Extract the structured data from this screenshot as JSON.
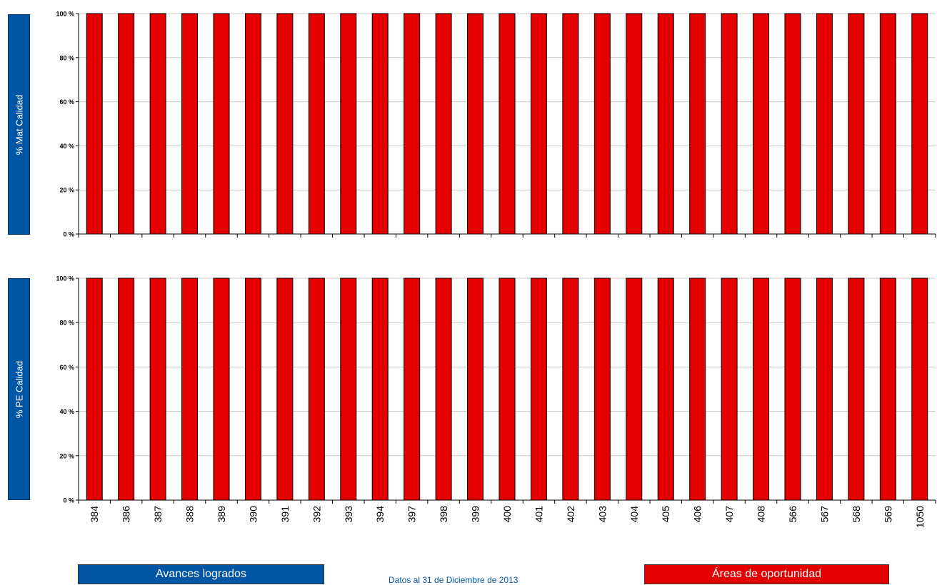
{
  "chart_data": [
    {
      "type": "bar",
      "ylabel": "% Mat Calidad",
      "ylim": [
        0,
        100
      ],
      "yticks": [
        "0 %",
        "20 %",
        "40 %",
        "60 %",
        "80 %",
        "100 %"
      ],
      "grid": true,
      "categories": [
        "384",
        "386",
        "387",
        "388",
        "389",
        "390",
        "391",
        "392",
        "393",
        "394",
        "397",
        "398",
        "399",
        "400",
        "401",
        "402",
        "403",
        "404",
        "405",
        "406",
        "407",
        "408",
        "566",
        "567",
        "568",
        "569",
        "1050"
      ],
      "values": [
        100,
        100,
        100,
        100,
        100,
        100,
        100,
        100,
        100,
        100,
        100,
        100,
        100,
        100,
        100,
        100,
        100,
        100,
        100,
        100,
        100,
        100,
        100,
        100,
        100,
        100,
        100
      ],
      "bar_color": "#e50000"
    },
    {
      "type": "bar",
      "ylabel": "% PE Calidad",
      "ylim": [
        0,
        100
      ],
      "yticks": [
        "0 %",
        "20 %",
        "40 %",
        "60 %",
        "80 %",
        "100 %"
      ],
      "grid": true,
      "categories": [
        "384",
        "386",
        "387",
        "388",
        "389",
        "390",
        "391",
        "392",
        "393",
        "394",
        "397",
        "398",
        "399",
        "400",
        "401",
        "402",
        "403",
        "404",
        "405",
        "406",
        "407",
        "408",
        "566",
        "567",
        "568",
        "569",
        "1050"
      ],
      "values": [
        100,
        100,
        100,
        100,
        100,
        100,
        100,
        100,
        100,
        100,
        100,
        100,
        100,
        100,
        100,
        100,
        100,
        100,
        100,
        100,
        100,
        100,
        100,
        100,
        100,
        100,
        100
      ],
      "bar_color": "#e50000"
    }
  ],
  "legend": {
    "achieved_label": "Avances logrados",
    "achieved_color": "#0055a5",
    "opportunity_label": "Áreas de oportunidad",
    "opportunity_color": "#e50000"
  },
  "footer": {
    "note": "Datos al 31 de Diciembre de 2013"
  }
}
